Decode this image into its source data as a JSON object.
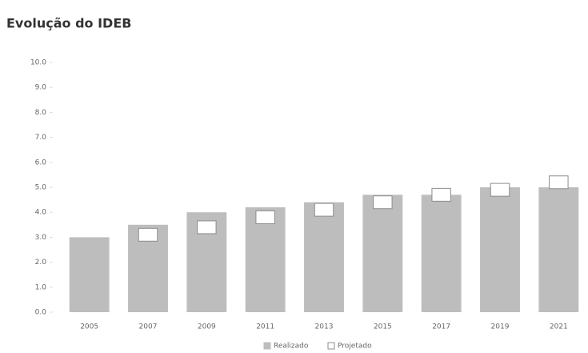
{
  "chart_data": {
    "type": "bar",
    "title": "Evolução do IDEB",
    "categories": [
      "2005",
      "2007",
      "2009",
      "2011",
      "2013",
      "2015",
      "2017",
      "2019",
      "2021"
    ],
    "series": [
      {
        "name": "Realizado",
        "color": "#bdbdbd",
        "values": [
          3.0,
          3.5,
          4.0,
          4.2,
          4.4,
          4.7,
          4.7,
          5.0,
          5.0
        ]
      },
      {
        "name": "Projetado",
        "color": "#8c8c8c",
        "values": [
          null,
          3.1,
          3.4,
          3.8,
          4.1,
          4.4,
          4.7,
          4.9,
          5.2
        ]
      }
    ],
    "ylim": [
      0,
      10
    ],
    "yticks": [
      {
        "value": 0,
        "label": "0.0"
      },
      {
        "value": 1,
        "label": "1.0"
      },
      {
        "value": 2,
        "label": "2.0"
      },
      {
        "value": 3,
        "label": "3.0"
      },
      {
        "value": 4,
        "label": "4.0"
      },
      {
        "value": 5,
        "label": "5.0"
      },
      {
        "value": 6,
        "label": "6.0"
      },
      {
        "value": 7,
        "label": "7.0"
      },
      {
        "value": 8,
        "label": "8.0"
      },
      {
        "value": 9,
        "label": "9.0"
      },
      {
        "value": 10,
        "label": "10.0"
      }
    ],
    "grid": false
  }
}
